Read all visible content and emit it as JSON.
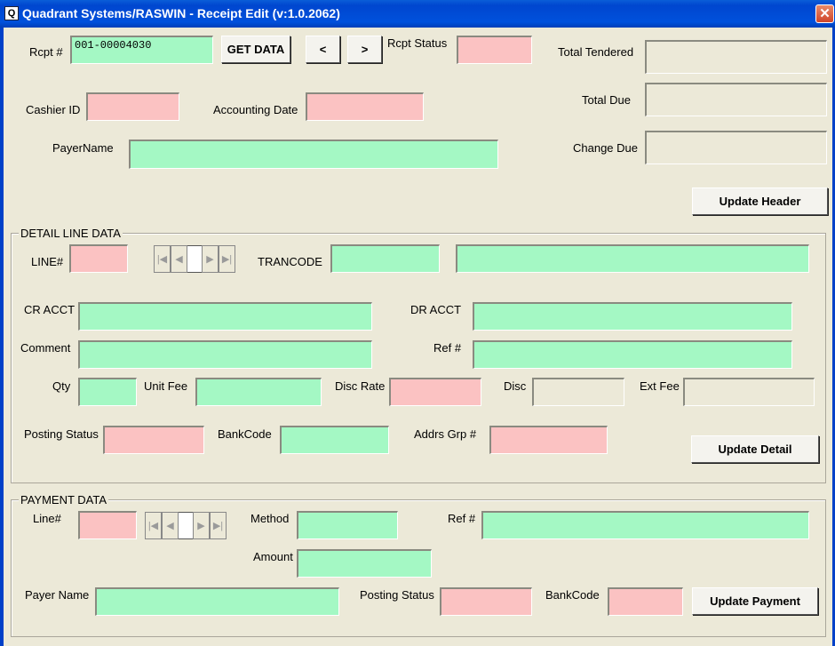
{
  "window": {
    "title": "Quadrant Systems/RASWIN - Receipt Edit (v:1.0.2062)",
    "icon": "app-icon",
    "close": "✕"
  },
  "header": {
    "rcpt_label": "Rcpt #",
    "rcpt_value": "001-00004030",
    "get_data": "GET DATA",
    "prev": "<",
    "next": ">",
    "status_label": "Rcpt Status",
    "status_value": "",
    "cashier_label": "Cashier ID",
    "cashier_value": "",
    "acct_date_label": "Accounting Date",
    "acct_date_value": "",
    "payer_label": "PayerName",
    "payer_value": "",
    "total_tendered_label": "Total Tendered",
    "total_tendered_value": "",
    "total_due_label": "Total Due",
    "total_due_value": "",
    "change_due_label": "Change Due",
    "change_due_value": "",
    "update_header": "Update Header"
  },
  "detail": {
    "title": "DETAIL LINE DATA",
    "line_label": "LINE#",
    "trancode_label": "TRANCODE",
    "cr_acct_label": "CR ACCT",
    "dr_acct_label": "DR ACCT",
    "comment_label": "Comment",
    "ref_label": "Ref #",
    "qty_label": "Qty",
    "unit_fee_label": "Unit Fee",
    "disc_rate_label": "Disc Rate",
    "disc_label": "Disc",
    "ext_fee_label": "Ext Fee",
    "posting_status_label": "Posting Status",
    "bankcode_label": "BankCode",
    "addrs_grp_label": "Addrs Grp #",
    "update_detail": "Update Detail"
  },
  "payment": {
    "title": "PAYMENT DATA",
    "line_label": "Line#",
    "method_label": "Method",
    "ref_label": "Ref #",
    "amount_label": "Amount",
    "payer_name_label": "Payer Name",
    "posting_status_label": "Posting Status",
    "bankcode_label": "BankCode",
    "update_payment": "Update Payment"
  },
  "colors": {
    "required_field": "#a4f8c4",
    "readonly_field": "#fbc2c2",
    "form_bg": "#ece9d8",
    "titlebar": "#0046cf"
  }
}
